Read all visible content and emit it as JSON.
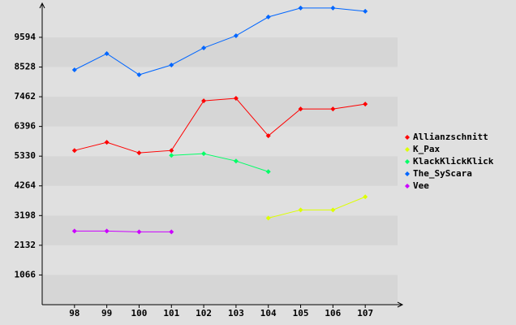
{
  "chart_data": {
    "type": "line",
    "categories": [
      "98",
      "99",
      "100",
      "101",
      "102",
      "103",
      "104",
      "105",
      "106",
      "107"
    ],
    "ylim": [
      0,
      10700
    ],
    "yticks": [
      1066,
      2132,
      3198,
      4264,
      5330,
      6396,
      7462,
      8528,
      9594
    ],
    "grid": true,
    "legend": "right",
    "series": [
      {
        "name": "Allianzschnitt",
        "color": "#ff0000",
        "values": [
          5534,
          5826,
          5447,
          5534,
          7316,
          7404,
          6060,
          7024,
          7024,
          7199
        ]
      },
      {
        "name": "K_Pax",
        "color": "#ddff00",
        "values": [
          null,
          null,
          null,
          null,
          null,
          null,
          3110,
          3402,
          3402,
          3870
        ]
      },
      {
        "name": "KlackKlickKlick",
        "color": "#00ff66",
        "values": [
          null,
          null,
          null,
          5359,
          5418,
          5155,
          4775,
          null,
          null,
          null
        ]
      },
      {
        "name": "The_SyScara",
        "color": "#0066ff",
        "values": [
          8426,
          9010,
          8250,
          8601,
          9214,
          9652,
          10324,
          10645,
          10645,
          10528
        ]
      },
      {
        "name": "Vee",
        "color": "#cc00ff",
        "values": [
          2643,
          2643,
          2614,
          2614,
          null,
          null,
          null,
          null,
          null,
          null
        ]
      }
    ]
  }
}
